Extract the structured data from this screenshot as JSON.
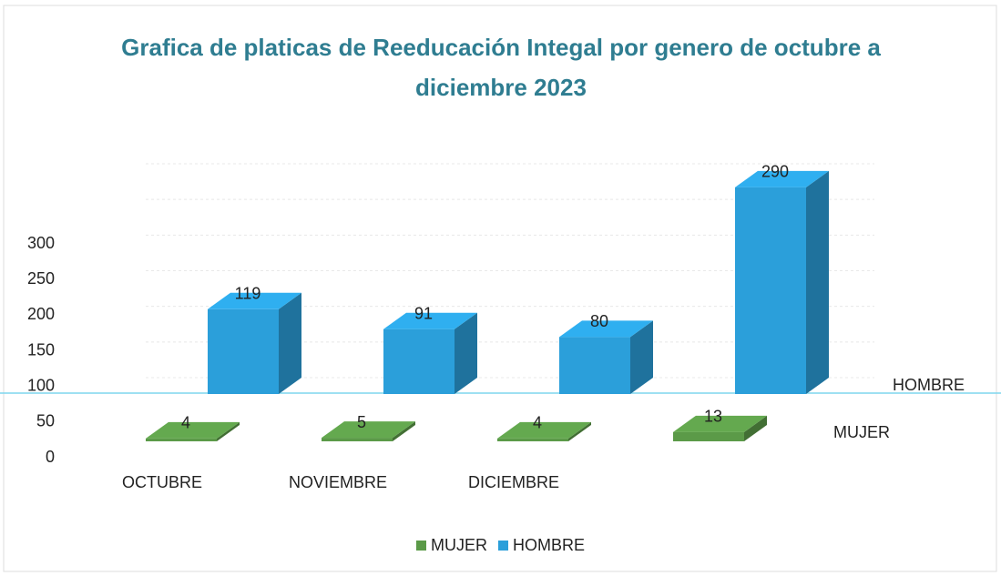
{
  "chart_data": {
    "type": "bar3d",
    "title": "Grafica de platicas de Reeducación Integal por genero de octubre a diciembre 2023",
    "categories": [
      "OCTUBRE",
      "NOVIEMBRE",
      "DICIEMBRE",
      null
    ],
    "series": [
      {
        "name": "MUJER",
        "color": "#5b9a48",
        "values": [
          4,
          5,
          4,
          13
        ]
      },
      {
        "name": "HOMBRE",
        "color": "#2b9fda",
        "values": [
          119,
          91,
          80,
          290
        ]
      }
    ],
    "ylim": [
      0,
      300
    ],
    "yticks": [
      0,
      50,
      100,
      150,
      200,
      250,
      300
    ],
    "grid": true
  }
}
